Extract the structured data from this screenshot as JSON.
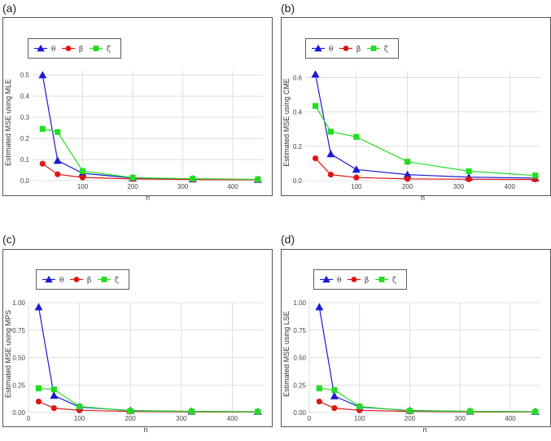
{
  "colors": {
    "theta": "#1a1ad6",
    "beta": "#e01414",
    "zeta": "#22dd22",
    "grid": "#d6d6d6",
    "frame": "#555555"
  },
  "chart_data": [
    {
      "panel_label": "(a)",
      "type": "line",
      "xlabel": "n",
      "ylabel": "Estimated MSE  using MLE",
      "x": [
        20,
        50,
        100,
        200,
        320,
        450
      ],
      "xlim": [
        0,
        460
      ],
      "xticks": [
        100,
        200,
        300,
        400
      ],
      "ylim": [
        0,
        0.52
      ],
      "yticks": [
        0,
        0.1,
        0.2,
        0.3,
        0.4,
        0.5
      ],
      "ytick_labels": [
        "0.0",
        "0.1",
        "0.2",
        "0.3",
        "0.4",
        "0.5"
      ],
      "series": [
        {
          "name": "θ",
          "key": "theta",
          "marker": "triangle",
          "values": [
            0.5,
            0.095,
            0.035,
            0.012,
            0.007,
            0.005
          ]
        },
        {
          "name": "β",
          "key": "beta",
          "marker": "circle",
          "values": [
            0.08,
            0.03,
            0.015,
            0.008,
            0.005,
            0.004
          ]
        },
        {
          "name": "ζ",
          "key": "zeta",
          "marker": "square",
          "values": [
            0.245,
            0.23,
            0.045,
            0.014,
            0.009,
            0.006
          ]
        }
      ]
    },
    {
      "panel_label": "(b)",
      "type": "line",
      "xlabel": "n",
      "ylabel": "Estimated MSE  using CME",
      "x": [
        20,
        50,
        100,
        200,
        320,
        450
      ],
      "xlim": [
        0,
        460
      ],
      "xticks": [
        100,
        200,
        300,
        400
      ],
      "ylim": [
        0,
        0.64
      ],
      "yticks": [
        0,
        0.2,
        0.4,
        0.6
      ],
      "ytick_labels": [
        "0.0",
        "0.2",
        "0.4",
        "0.6"
      ],
      "series": [
        {
          "name": "θ",
          "key": "theta",
          "marker": "triangle",
          "values": [
            0.62,
            0.155,
            0.065,
            0.035,
            0.02,
            0.015
          ]
        },
        {
          "name": "β",
          "key": "beta",
          "marker": "circle",
          "values": [
            0.13,
            0.035,
            0.018,
            0.01,
            0.008,
            0.007
          ]
        },
        {
          "name": "ζ",
          "key": "zeta",
          "marker": "square",
          "values": [
            0.435,
            0.285,
            0.255,
            0.11,
            0.055,
            0.03
          ]
        }
      ]
    },
    {
      "panel_label": "(c)",
      "type": "line",
      "xlabel": "n",
      "ylabel": "Estimated MSE  using MPS",
      "x": [
        20,
        50,
        100,
        200,
        320,
        450
      ],
      "xlim": [
        0,
        460
      ],
      "xticks": [
        0,
        100,
        200,
        300,
        400
      ],
      "ylim": [
        0,
        1.0
      ],
      "yticks": [
        0,
        0.25,
        0.5,
        0.75,
        1.0
      ],
      "ytick_labels": [
        "0.00",
        "0.25",
        "0.50",
        "0.75",
        "1.00"
      ],
      "series": [
        {
          "name": "θ",
          "key": "theta",
          "marker": "triangle",
          "values": [
            0.96,
            0.155,
            0.05,
            0.018,
            0.01,
            0.008
          ]
        },
        {
          "name": "β",
          "key": "beta",
          "marker": "circle",
          "values": [
            0.1,
            0.04,
            0.02,
            0.01,
            0.006,
            0.005
          ]
        },
        {
          "name": "ζ",
          "key": "zeta",
          "marker": "square",
          "values": [
            0.22,
            0.21,
            0.055,
            0.015,
            0.01,
            0.007
          ]
        }
      ]
    },
    {
      "panel_label": "(d)",
      "type": "line",
      "xlabel": "n",
      "ylabel": "Estimated MSE  using LSE",
      "x": [
        20,
        50,
        100,
        200,
        320,
        450
      ],
      "xlim": [
        0,
        460
      ],
      "xticks": [
        0,
        100,
        200,
        300,
        400
      ],
      "ylim": [
        0,
        1.0
      ],
      "yticks": [
        0,
        0.25,
        0.5,
        0.75,
        1.0
      ],
      "ytick_labels": [
        "0.00",
        "0.25",
        "0.50",
        "0.75",
        "1.00"
      ],
      "series": [
        {
          "name": "θ",
          "key": "theta",
          "marker": "triangle",
          "values": [
            0.96,
            0.15,
            0.05,
            0.018,
            0.01,
            0.008
          ]
        },
        {
          "name": "β",
          "key": "beta",
          "marker": "circle",
          "values": [
            0.1,
            0.04,
            0.02,
            0.01,
            0.006,
            0.005
          ]
        },
        {
          "name": "ζ",
          "key": "zeta",
          "marker": "square",
          "values": [
            0.22,
            0.205,
            0.055,
            0.015,
            0.01,
            0.007
          ]
        }
      ]
    }
  ]
}
